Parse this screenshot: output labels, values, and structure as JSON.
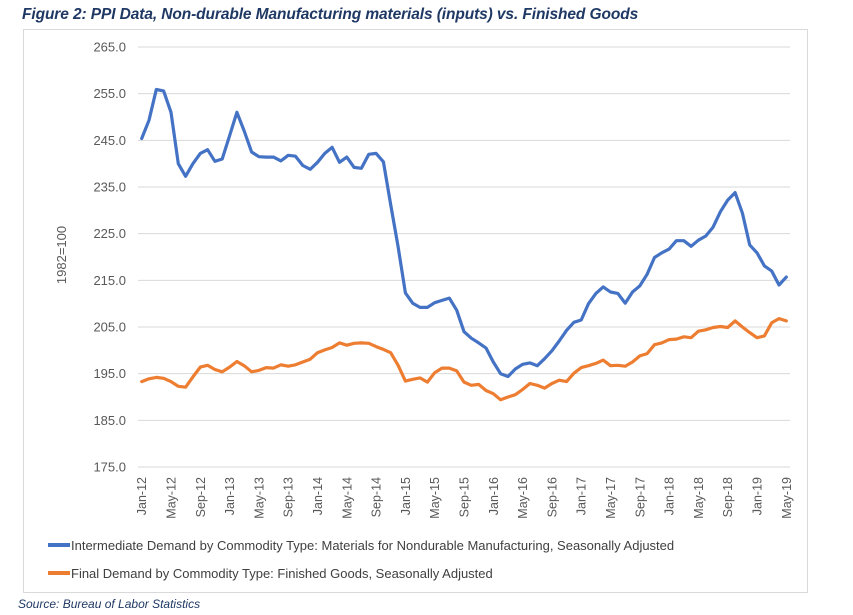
{
  "figure_title": "Figure 2: PPI Data, Non-durable Manufacturing materials (inputs) vs. Finished Goods",
  "source_note": "Source: Bureau of Labor Statistics",
  "chart_data": {
    "type": "line",
    "title": "Figure 2: PPI Data, Non-durable Manufacturing materials (inputs) vs. Finished Goods",
    "xlabel": "",
    "ylabel": "1982=100",
    "ylim": [
      175,
      265
    ],
    "yticks": [
      175,
      185,
      195,
      205,
      215,
      225,
      235,
      245,
      255,
      265
    ],
    "ytick_labels": [
      "175.0",
      "185.0",
      "195.0",
      "205.0",
      "215.0",
      "225.0",
      "235.0",
      "245.0",
      "255.0",
      "265.0"
    ],
    "grid": true,
    "legend_position": "bottom",
    "x_start": "Jan-12",
    "x_end": "May-19",
    "x_frequency": "monthly",
    "xtick_every_n_months": 4,
    "xtick_labels": [
      "Jan-12",
      "May-12",
      "Sep-12",
      "Jan-13",
      "May-13",
      "Sep-13",
      "Jan-14",
      "May-14",
      "Sep-14",
      "Jan-15",
      "May-15",
      "Sep-15",
      "Jan-16",
      "May-16",
      "Sep-16",
      "Jan-17",
      "May-17",
      "Sep-17",
      "Jan-18",
      "May-18",
      "Sep-18",
      "Jan-19",
      "May-19"
    ],
    "series": [
      {
        "name": "Intermediate Demand by Commodity Type: Materials for Nondurable Manufacturing, Seasonally Adjusted",
        "color": "#4472c4",
        "values": [
          245.4,
          249.3,
          255.9,
          255.6,
          251.0,
          240.0,
          237.3,
          240.0,
          242.2,
          243.0,
          240.5,
          241.0,
          246.0,
          251.0,
          247.0,
          242.5,
          241.5,
          241.4,
          241.4,
          240.6,
          241.8,
          241.6,
          239.6,
          238.8,
          240.3,
          242.2,
          243.5,
          240.3,
          241.4,
          239.2,
          239.0,
          242.0,
          242.2,
          240.4,
          231.2,
          222.2,
          212.3,
          210.1,
          209.2,
          209.2,
          210.2,
          210.7,
          211.2,
          208.6,
          204.0,
          202.6,
          201.6,
          200.5,
          197.5,
          195.0,
          194.4,
          196.0,
          197.0,
          197.3,
          196.7,
          198.2,
          199.9,
          202.0,
          204.3,
          206.0,
          206.5,
          210.0,
          212.2,
          213.6,
          212.5,
          212.2,
          210.1,
          212.5,
          213.8,
          216.3,
          219.9,
          220.9,
          221.7,
          223.5,
          223.5,
          222.3,
          223.6,
          224.5,
          226.4,
          229.7,
          232.2,
          233.8,
          229.4,
          222.6,
          220.9,
          218.1,
          217.0,
          214.0,
          215.7
        ]
      },
      {
        "name": "Final Demand by Commodity Type: Finished Goods, Seasonally Adjusted",
        "color": "#ed7d31",
        "values": [
          193.3,
          193.9,
          194.2,
          194.0,
          193.3,
          192.3,
          192.1,
          194.3,
          196.4,
          196.8,
          195.9,
          195.4,
          196.4,
          197.6,
          196.7,
          195.4,
          195.7,
          196.3,
          196.2,
          196.9,
          196.6,
          196.9,
          197.5,
          198.1,
          199.5,
          200.1,
          200.6,
          201.6,
          201.1,
          201.5,
          201.6,
          201.5,
          200.8,
          200.2,
          199.5,
          196.8,
          193.4,
          193.8,
          194.1,
          193.2,
          195.2,
          196.2,
          196.2,
          195.6,
          193.2,
          192.5,
          192.7,
          191.4,
          190.7,
          189.4,
          190.0,
          190.5,
          191.6,
          192.9,
          192.5,
          191.9,
          192.9,
          193.6,
          193.3,
          195.1,
          196.3,
          196.7,
          197.2,
          197.9,
          196.7,
          196.8,
          196.6,
          197.5,
          198.8,
          199.3,
          201.2,
          201.6,
          202.3,
          202.4,
          202.9,
          202.7,
          204.1,
          204.4,
          204.9,
          205.1,
          204.9,
          206.3,
          205.0,
          203.8,
          202.7,
          203.1,
          205.9,
          206.8,
          206.3
        ]
      }
    ]
  }
}
